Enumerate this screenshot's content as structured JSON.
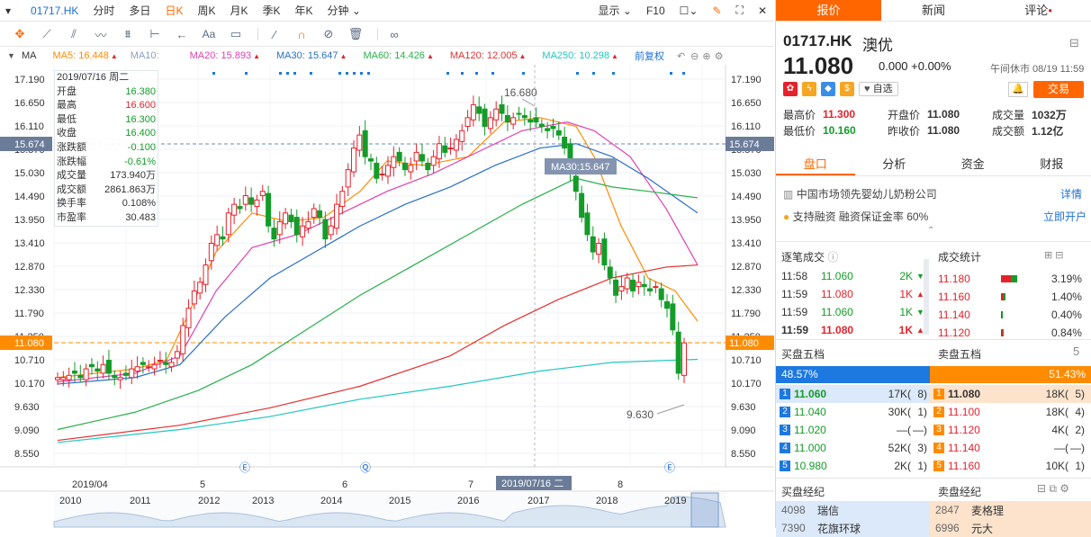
{
  "topbar": {
    "code": "01717.HK",
    "items": [
      "分时",
      "多日",
      "日K",
      "周K",
      "月K",
      "季K",
      "年K",
      "分钟"
    ],
    "active": "日K",
    "right": [
      "显示",
      "F10"
    ]
  },
  "mabar": {
    "ma": "MA",
    "ma5": "MA5: 16.448",
    "ma10": "MA10:",
    "ma20": "MA20: 15.893",
    "ma30": "MA30: 15.647",
    "ma60": "MA60: 14.426",
    "ma120": "MA120: 12.005",
    "ma250": "MA250: 10.298",
    "fq": "前复权"
  },
  "yaxis": [
    "17.190",
    "16.650",
    "16.110",
    "15.570",
    "15.030",
    "14.490",
    "13.950",
    "13.410",
    "12.870",
    "12.330",
    "11.790",
    "11.250",
    "10.710",
    "10.170",
    "9.630",
    "9.090",
    "8.550"
  ],
  "marks": {
    "current_left": "15.674",
    "current_right": "15.674",
    "last_left": "11.080",
    "last_right": "11.080",
    "high_label": "16.680",
    "low_label": "9.630",
    "ma30_tip": "MA30:15.647"
  },
  "xaxis_months": [
    "2019/04",
    "5",
    "6",
    "7",
    "8"
  ],
  "xaxis_cursor": "2019/07/16 二",
  "nav_years": [
    "2010",
    "2011",
    "2012",
    "2013",
    "2014",
    "2015",
    "2016",
    "2017",
    "2018",
    "2019"
  ],
  "event_marks": [
    "Ⓔ",
    "Ⓠ",
    "Ⓔ"
  ],
  "info": {
    "date": "2019/07/16 周二",
    "rows": [
      {
        "label": "开盘",
        "value": "16.380",
        "cls": "green"
      },
      {
        "label": "最高",
        "value": "16.600",
        "cls": "red"
      },
      {
        "label": "最低",
        "value": "16.300",
        "cls": "green"
      },
      {
        "label": "收盘",
        "value": "16.400",
        "cls": "green"
      },
      {
        "label": "涨跌额",
        "value": "-0.100",
        "cls": "green"
      },
      {
        "label": "涨跌幅",
        "value": "-0.61%",
        "cls": "green"
      },
      {
        "label": "成交量",
        "value": "173.940万",
        "cls": ""
      },
      {
        "label": "成交额",
        "value": "2861.863万",
        "cls": ""
      },
      {
        "label": "换手率",
        "value": "0.108%",
        "cls": ""
      },
      {
        "label": "市盈率",
        "value": "30.483",
        "cls": ""
      }
    ]
  },
  "panel": {
    "tabs": [
      "报价",
      "新闻",
      "评论"
    ],
    "code": "01717.HK",
    "name": "澳优",
    "price": "11.080",
    "change": "0.000 +0.00%",
    "status": "午间休市 08/19 11:59",
    "watch_label": "自选",
    "trade_label": "交易",
    "stats": [
      {
        "l1": "最高价",
        "v1": "11.300",
        "c1": "red",
        "l2": "开盘价",
        "v2": "11.080",
        "c2": "",
        "l3": "成交量",
        "v3": "1032万"
      },
      {
        "l1": "最低价",
        "v1": "10.160",
        "c1": "green",
        "l2": "昨收价",
        "v2": "11.080",
        "c2": "",
        "l3": "成交额",
        "v3": "1.12亿"
      }
    ],
    "subtabs": [
      "盘口",
      "分析",
      "资金",
      "财报"
    ],
    "company": "中国市场领先婴幼儿奶粉公司",
    "detail": "详情",
    "margin": "支持融资  融资保证金率 60%",
    "open_account": "立即开户",
    "ticks_title": "逐笔成交",
    "stats_title": "成交统计",
    "ticks": [
      {
        "t": "11:58",
        "p": "11.060",
        "v": "2K",
        "dir": "down"
      },
      {
        "t": "11:59",
        "p": "11.080",
        "v": "1K",
        "dir": "up"
      },
      {
        "t": "11:59",
        "p": "11.060",
        "v": "1K",
        "dir": "down"
      },
      {
        "t": "11:59",
        "p": "11.080",
        "v": "1K",
        "dir": "up"
      }
    ],
    "vstats": [
      {
        "p": "11.180",
        "pct": "3.19%"
      },
      {
        "p": "11.160",
        "pct": "1.40%"
      },
      {
        "p": "11.140",
        "pct": "0.40%"
      },
      {
        "p": "11.120",
        "pct": "0.84%"
      }
    ],
    "bid_title": "买盘五档",
    "ask_title": "卖盘五档",
    "bid_pct": "48.57%",
    "ask_pct": "51.43%",
    "bids": [
      {
        "n": "1",
        "p": "11.060",
        "v": "17K(",
        "c": "8)"
      },
      {
        "n": "2",
        "p": "11.040",
        "v": "30K(",
        "c": "1)"
      },
      {
        "n": "3",
        "p": "11.020",
        "v": "—(",
        "c": "—)"
      },
      {
        "n": "4",
        "p": "11.000",
        "v": "52K(",
        "c": "3)"
      },
      {
        "n": "5",
        "p": "10.980",
        "v": "2K(",
        "c": "1)"
      }
    ],
    "asks": [
      {
        "n": "1",
        "p": "11.080",
        "v": "18K(",
        "c": "5)"
      },
      {
        "n": "2",
        "p": "11.100",
        "v": "18K(",
        "c": "4)"
      },
      {
        "n": "3",
        "p": "11.120",
        "v": "4K(",
        "c": "2)"
      },
      {
        "n": "4",
        "p": "11.140",
        "v": "—(",
        "c": "—)"
      },
      {
        "n": "5",
        "p": "11.160",
        "v": "10K(",
        "c": "1)"
      }
    ],
    "broker_bid_title": "买盘经纪",
    "broker_ask_title": "卖盘经纪",
    "broker_bid": [
      {
        "id": "4098",
        "name": "瑞信"
      },
      {
        "id": "7390",
        "name": "花旗环球"
      }
    ],
    "broker_ask": [
      {
        "id": "2847",
        "name": "麦格理"
      },
      {
        "id": "6996",
        "name": "元大"
      }
    ]
  },
  "colors": {
    "accent": "#ff6600",
    "up": "#e5222b",
    "down": "#139c28",
    "ma5": "#ff8c00",
    "ma20": "#e040b0",
    "ma30": "#2a6fc8",
    "ma60": "#28b04a",
    "ma120": "#e53030",
    "ma250": "#20c8c0"
  }
}
